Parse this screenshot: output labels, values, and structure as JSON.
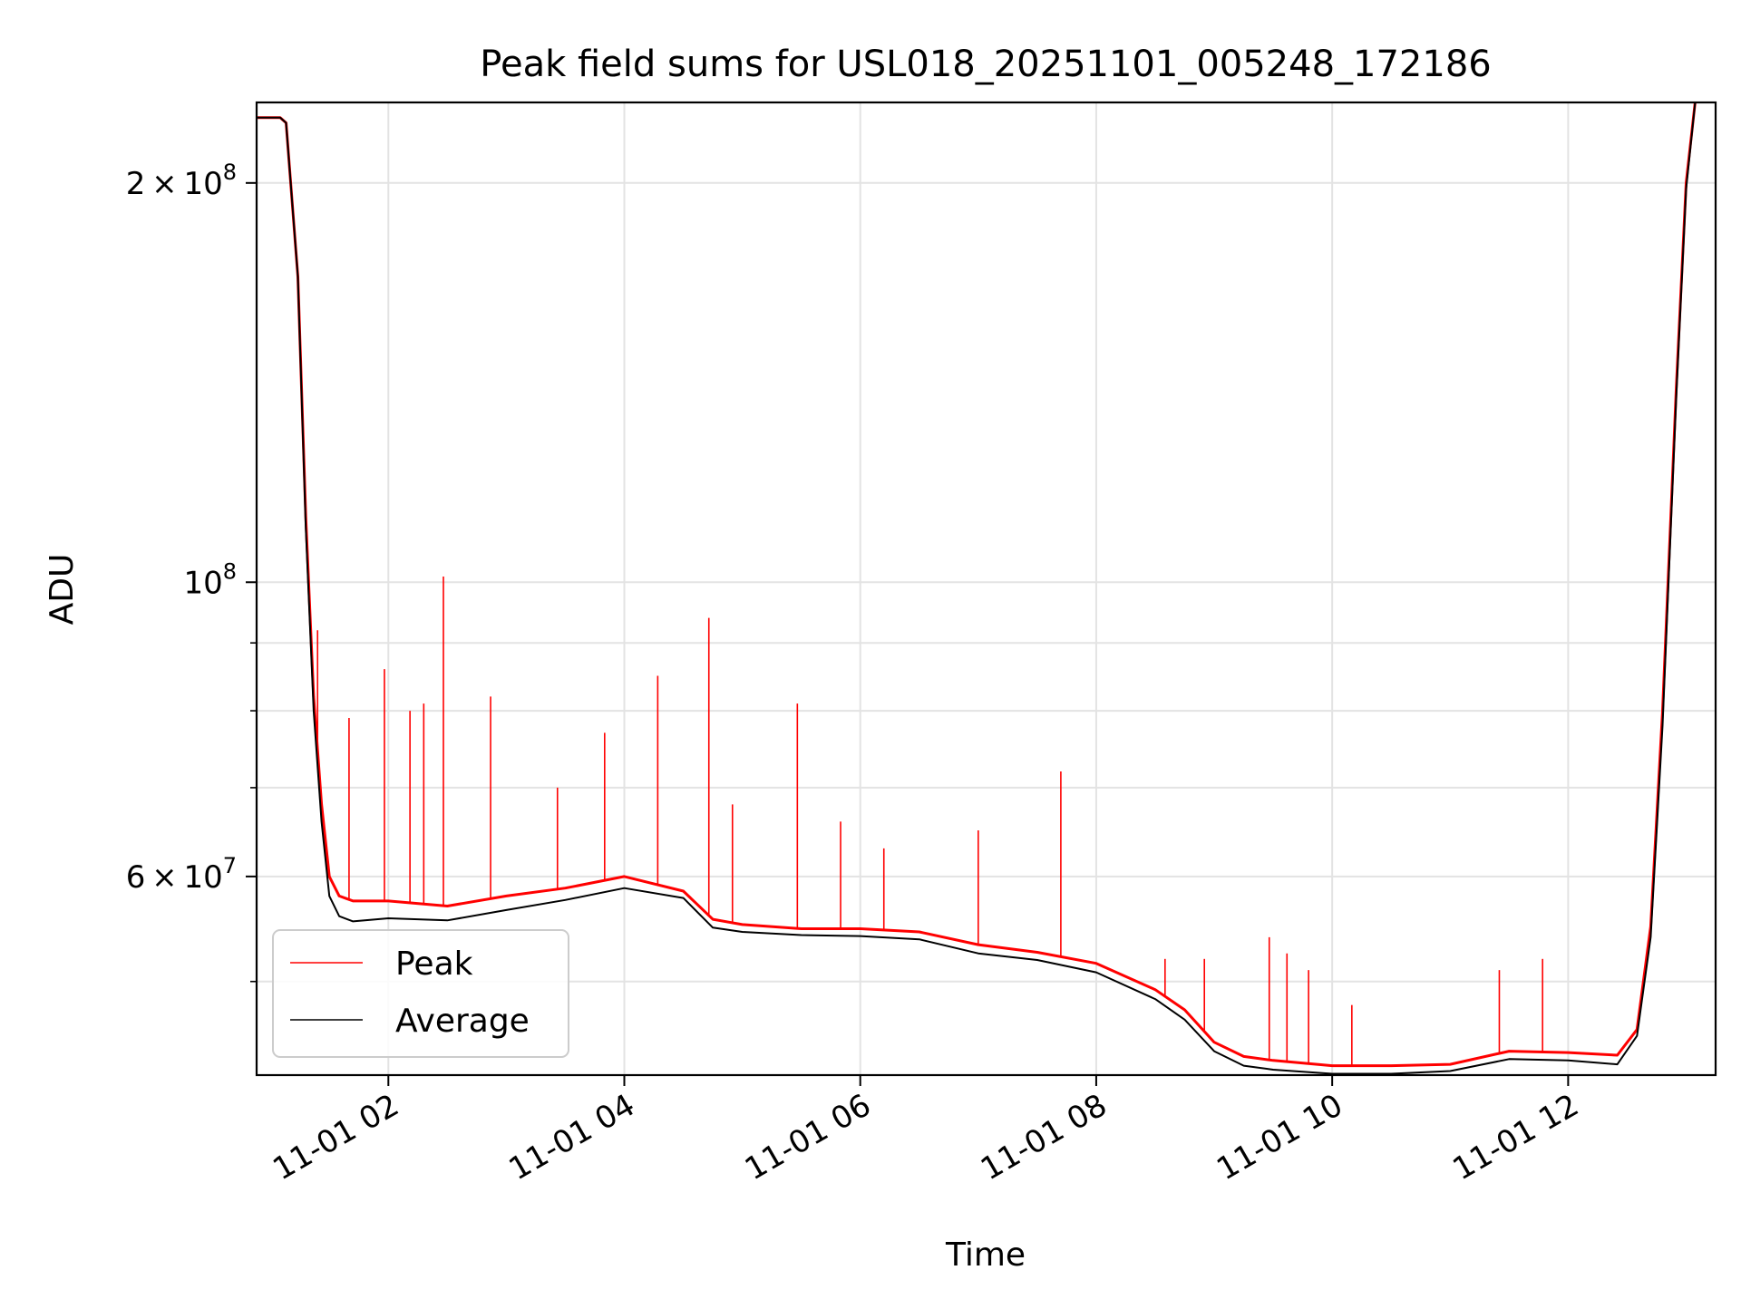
{
  "chart_data": {
    "type": "line",
    "title": "Peak field sums for USL018_20251101_005248_172186",
    "xlabel": "Time",
    "ylabel": "ADU",
    "x_axis": {
      "kind": "datetime",
      "range": [
        "2025-11-01 00:53",
        "2025-11-01 13:15"
      ],
      "ticks": [
        {
          "value": "2025-11-01 02:00",
          "label": "11-01 02"
        },
        {
          "value": "2025-11-01 04:00",
          "label": "11-01 04"
        },
        {
          "value": "2025-11-01 06:00",
          "label": "11-01 06"
        },
        {
          "value": "2025-11-01 08:00",
          "label": "11-01 08"
        },
        {
          "value": "2025-11-01 10:00",
          "label": "11-01 10"
        },
        {
          "value": "2025-11-01 12:00",
          "label": "11-01 12"
        }
      ]
    },
    "y_axis": {
      "scale": "log",
      "range": [
        42500000,
        230000000
      ],
      "major_ticks": [
        {
          "value": 100000000,
          "base": "10",
          "exp": "8"
        },
        {
          "value": 200000000,
          "mantissa": "2",
          "base": "10",
          "exp": "8"
        },
        {
          "value": 60000000,
          "mantissa": "6",
          "base": "10",
          "exp": "7"
        }
      ],
      "minor_ticks": [
        50000000,
        70000000,
        80000000,
        90000000
      ]
    },
    "grid": true,
    "legend": {
      "position": "lower-left",
      "entries": [
        "Peak",
        "Average"
      ]
    },
    "series": [
      {
        "name": "Peak",
        "color": "#ff0000",
        "x": [
          "2025-11-01 00:53",
          "2025-11-01 01:05",
          "2025-11-01 01:08",
          "2025-11-01 01:14",
          "2025-11-01 01:18",
          "2025-11-01 01:22",
          "2025-11-01 01:26",
          "2025-11-01 01:30",
          "2025-11-01 01:35",
          "2025-11-01 01:42",
          "2025-11-01 02:00",
          "2025-11-01 02:30",
          "2025-11-01 03:00",
          "2025-11-01 03:30",
          "2025-11-01 04:00",
          "2025-11-01 04:30",
          "2025-11-01 04:45",
          "2025-11-01 05:00",
          "2025-11-01 05:30",
          "2025-11-01 06:00",
          "2025-11-01 06:30",
          "2025-11-01 07:00",
          "2025-11-01 07:30",
          "2025-11-01 08:00",
          "2025-11-01 08:30",
          "2025-11-01 08:45",
          "2025-11-01 09:00",
          "2025-11-01 09:15",
          "2025-11-01 09:30",
          "2025-11-01 10:00",
          "2025-11-01 10:30",
          "2025-11-01 11:00",
          "2025-11-01 11:30",
          "2025-11-01 12:00",
          "2025-11-01 12:25",
          "2025-11-01 12:35",
          "2025-11-01 12:42",
          "2025-11-01 12:48",
          "2025-11-01 12:55",
          "2025-11-01 13:00",
          "2025-11-01 13:05"
        ],
        "y": [
          224000000,
          224000000,
          222000000,
          170000000,
          112000000,
          82000000,
          68000000,
          60000000,
          58000000,
          57500000,
          57500000,
          57000000,
          58000000,
          58800000,
          60000000,
          58500000,
          55700000,
          55200000,
          54800000,
          54800000,
          54500000,
          53300000,
          52600000,
          51600000,
          49300000,
          47600000,
          45000000,
          43900000,
          43600000,
          43200000,
          43200000,
          43300000,
          44300000,
          44200000,
          44000000,
          46000000,
          55000000,
          80000000,
          140000000,
          200000000,
          233000000
        ],
        "spikes": [
          {
            "x": "2025-11-01 01:24",
            "y": 92000000
          },
          {
            "x": "2025-11-01 01:40",
            "y": 79000000
          },
          {
            "x": "2025-11-01 01:58",
            "y": 86000000
          },
          {
            "x": "2025-11-01 02:11",
            "y": 80000000
          },
          {
            "x": "2025-11-01 02:18",
            "y": 81000000
          },
          {
            "x": "2025-11-01 02:28",
            "y": 101000000
          },
          {
            "x": "2025-11-01 02:52",
            "y": 82000000
          },
          {
            "x": "2025-11-01 03:26",
            "y": 70000000
          },
          {
            "x": "2025-11-01 03:50",
            "y": 77000000
          },
          {
            "x": "2025-11-01 04:17",
            "y": 85000000
          },
          {
            "x": "2025-11-01 04:43",
            "y": 94000000
          },
          {
            "x": "2025-11-01 04:55",
            "y": 68000000
          },
          {
            "x": "2025-11-01 05:28",
            "y": 81000000
          },
          {
            "x": "2025-11-01 05:50",
            "y": 66000000
          },
          {
            "x": "2025-11-01 06:12",
            "y": 63000000
          },
          {
            "x": "2025-11-01 07:00",
            "y": 65000000
          },
          {
            "x": "2025-11-01 07:42",
            "y": 72000000
          },
          {
            "x": "2025-11-01 08:35",
            "y": 52000000
          },
          {
            "x": "2025-11-01 08:55",
            "y": 52000000
          },
          {
            "x": "2025-11-01 09:28",
            "y": 54000000
          },
          {
            "x": "2025-11-01 09:37",
            "y": 52500000
          },
          {
            "x": "2025-11-01 09:48",
            "y": 51000000
          },
          {
            "x": "2025-11-01 10:10",
            "y": 48000000
          },
          {
            "x": "2025-11-01 11:25",
            "y": 51000000
          },
          {
            "x": "2025-11-01 11:47",
            "y": 52000000
          }
        ]
      },
      {
        "name": "Average",
        "color": "#000000",
        "x": [
          "2025-11-01 00:53",
          "2025-11-01 01:05",
          "2025-11-01 01:08",
          "2025-11-01 01:14",
          "2025-11-01 01:18",
          "2025-11-01 01:22",
          "2025-11-01 01:26",
          "2025-11-01 01:30",
          "2025-11-01 01:35",
          "2025-11-01 01:42",
          "2025-11-01 02:00",
          "2025-11-01 02:30",
          "2025-11-01 03:00",
          "2025-11-01 03:30",
          "2025-11-01 04:00",
          "2025-11-01 04:30",
          "2025-11-01 04:45",
          "2025-11-01 05:00",
          "2025-11-01 05:30",
          "2025-11-01 06:00",
          "2025-11-01 06:30",
          "2025-11-01 07:00",
          "2025-11-01 07:30",
          "2025-11-01 08:00",
          "2025-11-01 08:30",
          "2025-11-01 08:45",
          "2025-11-01 09:00",
          "2025-11-01 09:15",
          "2025-11-01 09:30",
          "2025-11-01 10:00",
          "2025-11-01 10:30",
          "2025-11-01 11:00",
          "2025-11-01 11:30",
          "2025-11-01 12:00",
          "2025-11-01 12:25",
          "2025-11-01 12:35",
          "2025-11-01 12:42",
          "2025-11-01 12:48",
          "2025-11-01 12:55",
          "2025-11-01 13:00",
          "2025-11-01 13:05"
        ],
        "y": [
          224000000,
          224000000,
          222000000,
          170000000,
          110000000,
          80000000,
          66000000,
          58000000,
          56000000,
          55500000,
          55800000,
          55600000,
          56600000,
          57600000,
          58800000,
          57800000,
          54900000,
          54500000,
          54200000,
          54100000,
          53800000,
          52500000,
          51900000,
          50800000,
          48500000,
          46800000,
          44300000,
          43200000,
          42900000,
          42600000,
          42600000,
          42800000,
          43700000,
          43600000,
          43300000,
          45500000,
          54000000,
          78000000,
          138000000,
          198000000,
          233000000
        ]
      }
    ]
  }
}
